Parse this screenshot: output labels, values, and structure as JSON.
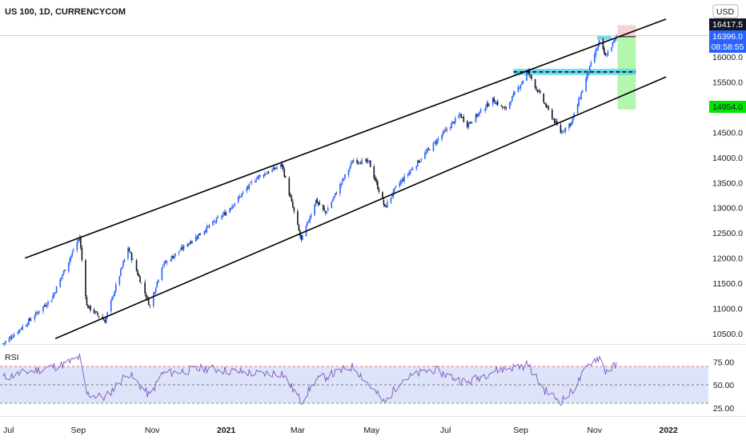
{
  "chart_data": {
    "type": "candlestick",
    "title": "US 100, 1D, CURRENCYCOM",
    "currency": "USD",
    "x_tick_labels": [
      "Jul",
      "Sep",
      "Nov",
      "2021",
      "Mar",
      "May",
      "Jul",
      "Sep",
      "Nov",
      "2022"
    ],
    "y_ticks": [
      10500,
      11000,
      11500,
      12000,
      12500,
      13000,
      13500,
      14000,
      14500,
      15500,
      16000
    ],
    "y_tick_labels": [
      "10500.0",
      "11000.0",
      "11500.0",
      "12000.0",
      "12500.0",
      "13000.0",
      "13500.0",
      "14000.0",
      "14500.0",
      "15500.0",
      "16000.0"
    ],
    "price_badges": {
      "last_price": "16417.5",
      "current_price": "16396.0",
      "countdown": "08:58:55",
      "target_price": "14954.0"
    },
    "anchors": [
      {
        "date": "2020-07-01",
        "close": 10300
      },
      {
        "date": "2020-07-20",
        "close": 10700
      },
      {
        "date": "2020-08-10",
        "close": 11200
      },
      {
        "date": "2020-09-02",
        "close": 12420
      },
      {
        "date": "2020-09-08",
        "close": 11050
      },
      {
        "date": "2020-09-23",
        "close": 10750
      },
      {
        "date": "2020-10-12",
        "close": 12200
      },
      {
        "date": "2020-10-30",
        "close": 11050
      },
      {
        "date": "2020-11-09",
        "close": 11850
      },
      {
        "date": "2020-12-01",
        "close": 12300
      },
      {
        "date": "2020-12-31",
        "close": 12890
      },
      {
        "date": "2021-01-26",
        "close": 13600
      },
      {
        "date": "2021-02-16",
        "close": 13850
      },
      {
        "date": "2021-03-04",
        "close": 12350
      },
      {
        "date": "2021-03-16",
        "close": 13150
      },
      {
        "date": "2021-03-24",
        "close": 12900
      },
      {
        "date": "2021-04-16",
        "close": 13950
      },
      {
        "date": "2021-04-29",
        "close": 13900
      },
      {
        "date": "2021-05-12",
        "close": 13000
      },
      {
        "date": "2021-05-21",
        "close": 13400
      },
      {
        "date": "2021-06-15",
        "close": 14100
      },
      {
        "date": "2021-07-13",
        "close": 14850
      },
      {
        "date": "2021-07-19",
        "close": 14650
      },
      {
        "date": "2021-08-09",
        "close": 15150
      },
      {
        "date": "2021-08-19",
        "close": 14950
      },
      {
        "date": "2021-09-07",
        "close": 15700
      },
      {
        "date": "2021-09-20",
        "close": 15100
      },
      {
        "date": "2021-10-04",
        "close": 14500
      },
      {
        "date": "2021-10-13",
        "close": 14700
      },
      {
        "date": "2021-10-29",
        "close": 15850
      },
      {
        "date": "2021-11-05",
        "close": 16300
      },
      {
        "date": "2021-11-10",
        "close": 16000
      },
      {
        "date": "2021-11-19",
        "close": 16400
      }
    ],
    "drawings": {
      "channel_upper": [
        [
          "2020-07-19",
          12000
        ],
        [
          "2021-12-30",
          16750
        ]
      ],
      "channel_lower": [
        [
          "2020-08-13",
          10400
        ],
        [
          "2021-12-30",
          15600
        ]
      ],
      "resistance_zone": {
        "from": "2021-08-26",
        "to": "2021-12-05",
        "low": 15640,
        "high": 15760
      },
      "resistance_line": 15700,
      "top_zone": {
        "from": "2021-11-03",
        "to": "2021-11-15",
        "low": 16340,
        "high": 16410
      },
      "short_position": {
        "from": "2021-11-20",
        "to": "2021-12-05",
        "entry": 16400,
        "stop": 16630,
        "target": 14954
      }
    },
    "rsi": {
      "label": "RSI",
      "y_tick_labels": [
        "75.00",
        "50.00",
        "25.00"
      ],
      "upper_band": 70,
      "middle": 50,
      "lower_band": 30,
      "anchors": [
        {
          "date": "2020-07-01",
          "value": 58
        },
        {
          "date": "2020-07-25",
          "value": 65
        },
        {
          "date": "2020-08-20",
          "value": 72
        },
        {
          "date": "2020-09-02",
          "value": 80
        },
        {
          "date": "2020-09-08",
          "value": 40
        },
        {
          "date": "2020-09-23",
          "value": 36
        },
        {
          "date": "2020-10-12",
          "value": 63
        },
        {
          "date": "2020-10-30",
          "value": 38
        },
        {
          "date": "2020-11-09",
          "value": 62
        },
        {
          "date": "2020-12-15",
          "value": 68
        },
        {
          "date": "2021-01-26",
          "value": 62
        },
        {
          "date": "2021-02-16",
          "value": 63
        },
        {
          "date": "2021-03-04",
          "value": 32
        },
        {
          "date": "2021-03-16",
          "value": 55
        },
        {
          "date": "2021-04-16",
          "value": 70
        },
        {
          "date": "2021-05-12",
          "value": 30
        },
        {
          "date": "2021-05-25",
          "value": 55
        },
        {
          "date": "2021-06-20",
          "value": 67
        },
        {
          "date": "2021-07-19",
          "value": 52
        },
        {
          "date": "2021-08-09",
          "value": 65
        },
        {
          "date": "2021-09-07",
          "value": 72
        },
        {
          "date": "2021-09-20",
          "value": 45
        },
        {
          "date": "2021-10-04",
          "value": 32
        },
        {
          "date": "2021-10-13",
          "value": 42
        },
        {
          "date": "2021-10-29",
          "value": 75
        },
        {
          "date": "2021-11-05",
          "value": 80
        },
        {
          "date": "2021-11-10",
          "value": 65
        },
        {
          "date": "2021-11-19",
          "value": 71
        }
      ]
    }
  },
  "colors": {
    "up_candle": "#2962FF",
    "down_candle": "#131722",
    "channel_line": "#000000",
    "zone_fill": "#4FD6E8",
    "stop_fill": "#F7C5C5",
    "target_fill": "#A6F5A0",
    "rsi_line": "#7E57C2",
    "rsi_band_fill": "#DDE3F8",
    "current_badge": "#2962FF",
    "last_badge": "#131722",
    "target_badge": "#00E600"
  }
}
